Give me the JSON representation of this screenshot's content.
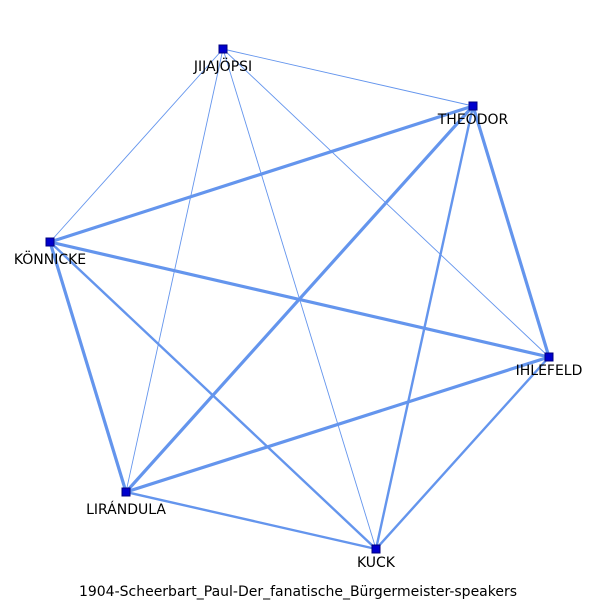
{
  "diagram": {
    "caption": "1904-Scheerbart_Paul-Der_fanatische_Bürgermeister-speakers",
    "colors": {
      "edge": "#6495ED",
      "node_fill": "#0000CD",
      "node_stroke": "#000080",
      "background": "#ffffff"
    },
    "nodes": [
      {
        "id": "jijajopsi",
        "label": "JIJAJÖPSI"
      },
      {
        "id": "theodor",
        "label": "THEODOR"
      },
      {
        "id": "konnicke",
        "label": "KÖNNICKE"
      },
      {
        "id": "ihlefeld",
        "label": "IHLEFELD"
      },
      {
        "id": "lirandula",
        "label": "LIRÁNDULA"
      },
      {
        "id": "kuck",
        "label": "KUCK"
      }
    ],
    "edges": [
      {
        "source": "jijajopsi",
        "target": "theodor",
        "weight": 1
      },
      {
        "source": "jijajopsi",
        "target": "konnicke",
        "weight": 1
      },
      {
        "source": "jijajopsi",
        "target": "ihlefeld",
        "weight": 1
      },
      {
        "source": "jijajopsi",
        "target": "lirandula",
        "weight": 1
      },
      {
        "source": "jijajopsi",
        "target": "kuck",
        "weight": 1
      },
      {
        "source": "theodor",
        "target": "konnicke",
        "weight": 3
      },
      {
        "source": "theodor",
        "target": "ihlefeld",
        "weight": 3
      },
      {
        "source": "theodor",
        "target": "lirandula",
        "weight": 3
      },
      {
        "source": "theodor",
        "target": "kuck",
        "weight": 2
      },
      {
        "source": "konnicke",
        "target": "ihlefeld",
        "weight": 3
      },
      {
        "source": "konnicke",
        "target": "lirandula",
        "weight": 3
      },
      {
        "source": "konnicke",
        "target": "kuck",
        "weight": 2
      },
      {
        "source": "ihlefeld",
        "target": "lirandula",
        "weight": 3
      },
      {
        "source": "ihlefeld",
        "target": "kuck",
        "weight": 2
      },
      {
        "source": "lirandula",
        "target": "kuck",
        "weight": 2
      }
    ]
  }
}
